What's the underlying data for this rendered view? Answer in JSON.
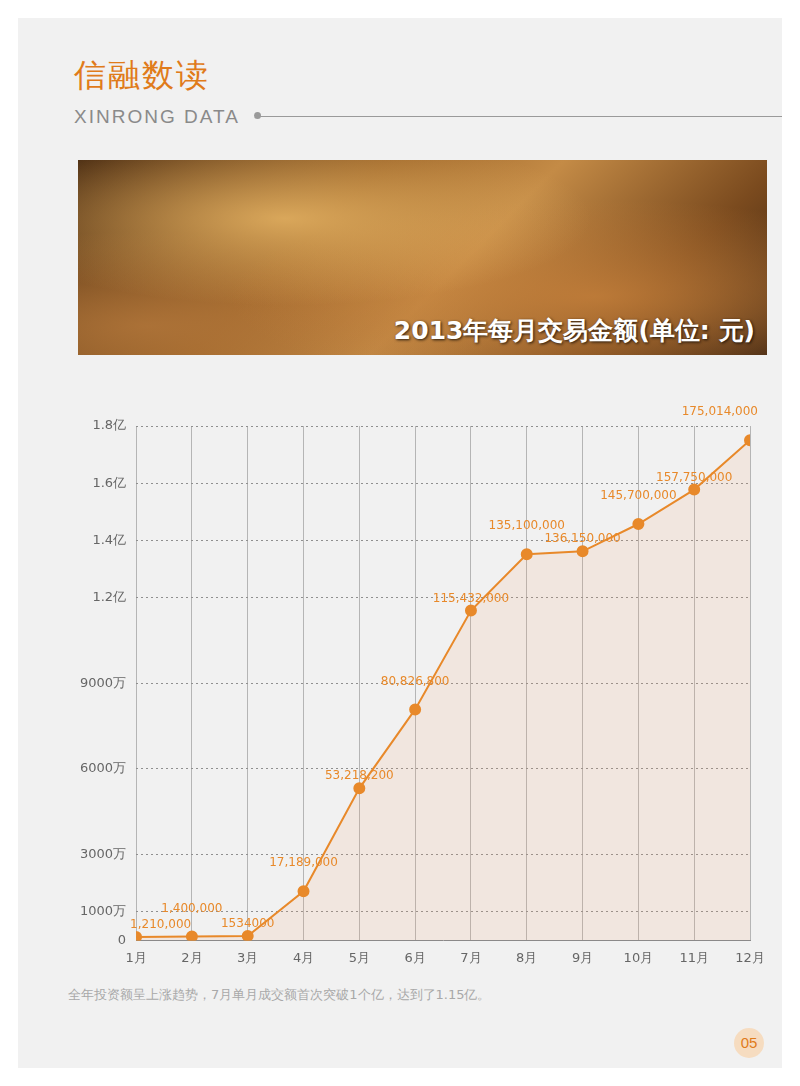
{
  "page": {
    "title": "信融数读",
    "subtitle": "XINRONG DATA",
    "caption": "全年投资额呈上涨趋势，7月单月成交额首次突破1个亿，达到了1.15亿。",
    "page_number": "05"
  },
  "chart_data": {
    "type": "line",
    "title": "2013年每月交易金额(单位: 元)",
    "categories": [
      "1月",
      "2月",
      "3月",
      "4月",
      "5月",
      "6月",
      "7月",
      "8月",
      "9月",
      "10月",
      "11月",
      "12月"
    ],
    "values": [
      1210000,
      1400000,
      1534000,
      17189000,
      53218200,
      80826800,
      115432000,
      135100000,
      136150000,
      145700000,
      157750000,
      175014000
    ],
    "value_labels": [
      "1,210,000",
      "1,400,000",
      "1534000",
      "17,189,000",
      "53,218,200",
      "80,826,800",
      "115,432,000",
      "135,100,000",
      "136,150,000",
      "145,700,000",
      "157,750,000",
      "175,014,000"
    ],
    "color": "#e8892a",
    "ylim": [
      0,
      180000000
    ],
    "yticks": [
      0,
      {
        "value": 10000000,
        "label": "1000万"
      },
      {
        "value": 30000000,
        "label": "3000万"
      },
      {
        "value": 60000000,
        "label": "6000万"
      },
      {
        "value": 90000000,
        "label": "9000万"
      },
      {
        "value": 120000000,
        "label": "1.2亿"
      },
      {
        "value": 140000000,
        "label": "1.4亿"
      },
      {
        "value": 160000000,
        "label": "1.6亿"
      },
      {
        "value": 180000000,
        "label": "1.8亿"
      }
    ],
    "grid": true,
    "data_labels": true,
    "marker": "circle",
    "line_style": "solid"
  }
}
